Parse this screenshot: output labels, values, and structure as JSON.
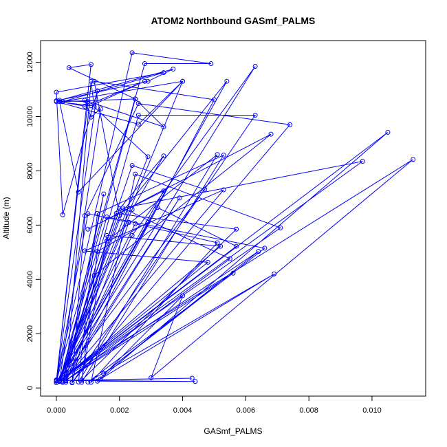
{
  "chart_data": {
    "type": "line",
    "title": "ATOM2 Northbound GASmf_PALMS",
    "xlabel": "GASmf_PALMS",
    "ylabel": "Altitude (m)",
    "xlim": [
      -0.0005,
      0.0117
    ],
    "ylim": [
      -300,
      12800
    ],
    "xticks": [
      0.0,
      0.002,
      0.004,
      0.006,
      0.008,
      0.01
    ],
    "xtick_labels": [
      "0.000",
      "0.002",
      "0.004",
      "0.006",
      "0.008",
      "0.010"
    ],
    "yticks": [
      0,
      2000,
      4000,
      6000,
      8000,
      10000,
      12000
    ],
    "ytick_labels": [
      "0",
      "2000",
      "4000",
      "6000",
      "8000",
      "10000",
      "12000"
    ],
    "grid": false,
    "color": "#0000ff",
    "series": [
      {
        "x": [
          0.0,
          0.0024,
          0.0049,
          0.0028,
          0.0,
          0.0013,
          0.0002,
          0.0,
          0.0034,
          0.0002,
          0.0025,
          0.0004,
          0.0011,
          0.0,
          0.001,
          0.0,
          0.0029,
          0.0037,
          0.0001,
          0.0002,
          0.004,
          0.0007,
          0.0001,
          0.0009,
          0.0028,
          0.0011,
          0.0,
          0.0026,
          0.004,
          0.0001,
          0.0025,
          0.0034,
          0.0009,
          0.0011,
          0.0014,
          0.0001,
          0.0029,
          0.0012,
          0.0011,
          0.0003,
          0.005,
          0.0012,
          0.002,
          0.0001,
          0.0024,
          0.0034,
          0.002,
          0.0002,
          0.0024,
          0.0063,
          0.0001,
          0.0021,
          0.0054,
          0.0001,
          0.0,
          0.001,
          0.0023,
          0.0003,
          0.0015,
          0.0002,
          0.0026,
          0.0063,
          0.0005,
          0.0009,
          0.0026,
          0.0074,
          0.0005,
          0.0016,
          0.0051,
          0.0007,
          0.0013,
          0.0053,
          0.0008,
          0.0013,
          0.0029,
          0.0001,
          0.0024,
          0.0047,
          0.0001,
          0.0032,
          0.0057,
          0.0001,
          0.0003,
          0.0039,
          0.0002,
          0.0012,
          0.0068,
          0.001,
          0.0034,
          0.0,
          0.0025,
          0.0051,
          0.0011,
          0.0025,
          0.0071,
          0.0001,
          0.0019,
          0.0057,
          0.0008,
          0.0016,
          0.0052,
          0.0001,
          0.0016,
          0.0066,
          0.0015,
          0.0064,
          0.0002,
          0.0053,
          0.0009,
          0.0048,
          0.0001,
          0.0097,
          0.0021,
          0.0055,
          0.0003,
          0.0056,
          0.001,
          0.0069,
          0.0014,
          0.0105,
          0.0001,
          0.0113,
          0.003,
          0.004,
          0.0013,
          0.0044,
          0.0001,
          0.0043,
          0.0
        ],
        "y": [
          300,
          12350,
          11950,
          11950,
          250,
          10950,
          6380,
          10900,
          11620,
          10550,
          10650,
          11800,
          11920,
          280,
          10550,
          10580,
          11300,
          11750,
          10600,
          10550,
          11300,
          7220,
          10550,
          10380,
          11300,
          10400,
          10550,
          9720,
          11300,
          240,
          10650,
          9620,
          10600,
          9980,
          10280,
          250,
          8520,
          10350,
          11300,
          260,
          10620,
          11300,
          6350,
          260,
          6580,
          8550,
          6600,
          250,
          5620,
          11850,
          280,
          6500,
          11300,
          260,
          250,
          6420,
          6100,
          210,
          7150,
          210,
          10050,
          10050,
          190,
          6350,
          10480,
          9700,
          210,
          5420,
          8600,
          220,
          6430,
          8580,
          210,
          5030,
          6100,
          270,
          8200,
          7320,
          260,
          6650,
          5220,
          270,
          280,
          7000,
          250,
          4150,
          9350,
          5850,
          7260,
          190,
          6050,
          5350,
          210,
          7880,
          5900,
          270,
          6430,
          5850,
          280,
          5620,
          5220,
          250,
          6300,
          5150,
          530,
          5030,
          210,
          7300,
          5050,
          4630,
          260,
          8350,
          6630,
          4760,
          280,
          4230,
          220,
          4200,
          330,
          9420,
          260,
          8420,
          380,
          3400,
          250,
          240,
          280,
          360,
          270
        ]
      }
    ]
  }
}
